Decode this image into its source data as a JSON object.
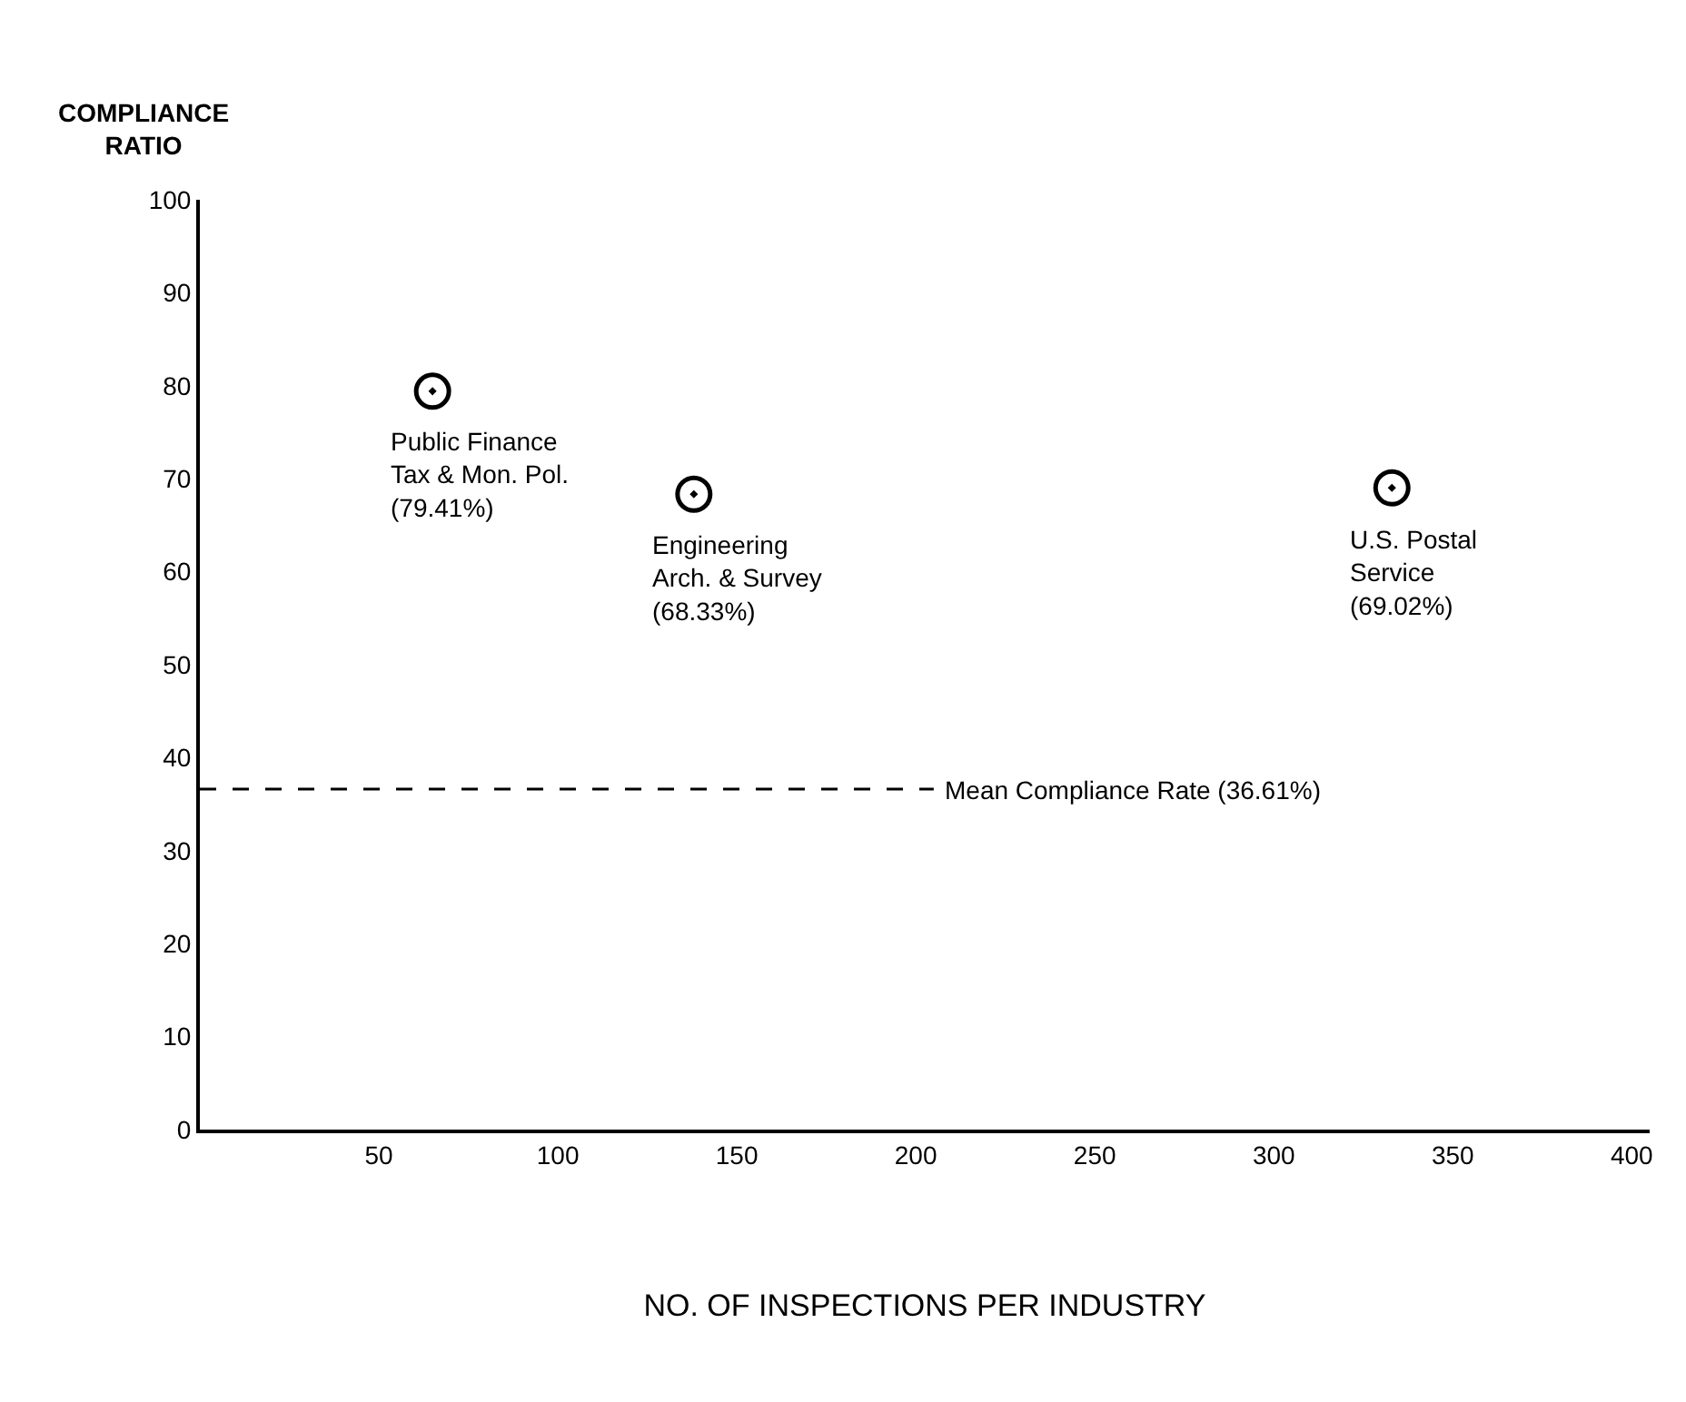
{
  "chart_data": {
    "type": "scatter",
    "xlabel": "NO. OF INSPECTIONS PER INDUSTRY",
    "ylabel": "COMPLIANCE\nRATIO",
    "x": [
      65,
      138,
      333
    ],
    "values": [
      79.41,
      68.33,
      69.02
    ],
    "color": "#000000",
    "marker": "circle",
    "xlim": [
      0,
      405
    ],
    "ylim": [
      0,
      100
    ],
    "xticks": [
      50,
      100,
      150,
      200,
      250,
      300,
      350,
      400
    ],
    "yticks": [
      0,
      10,
      20,
      30,
      40,
      50,
      60,
      70,
      80,
      90,
      100
    ],
    "legend": false,
    "annotations": [
      {
        "text": "Public Finance\nTax & Mon. Pol.\n(79.41%)",
        "x": 65,
        "y": 79.41
      },
      {
        "text": "Engineering\nArch. & Survey\n(68.33%)",
        "x": 138,
        "y": 68.33
      },
      {
        "text": "U.S. Postal\nService\n(69.02%)",
        "x": 333,
        "y": 69.02
      }
    ],
    "ref_lines": [
      {
        "axis": "y",
        "value": 36.61,
        "label": "Mean Compliance Rate (36.61%)",
        "color": "#000000",
        "line_style": "dashed"
      }
    ]
  }
}
